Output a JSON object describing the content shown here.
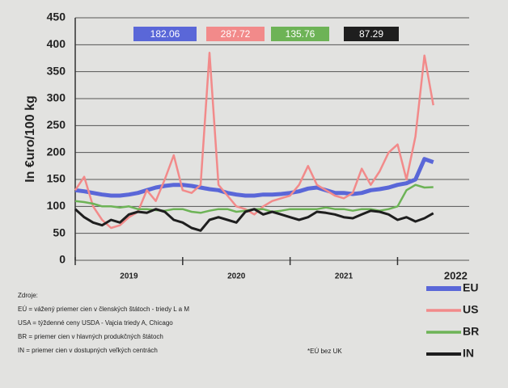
{
  "chart_data": {
    "type": "line",
    "ylabel": "In €uro/100 kg",
    "ylim": [
      0,
      450
    ],
    "yticks": [
      0,
      50,
      100,
      150,
      200,
      250,
      300,
      350,
      400,
      450
    ],
    "xlim": [
      0,
      44
    ],
    "xticks": [
      0,
      12,
      24,
      36
    ],
    "year_labels": [
      {
        "value": 6,
        "label": "2019"
      },
      {
        "value": 18,
        "label": "2020"
      },
      {
        "value": 30,
        "label": "2021"
      },
      {
        "value": 42.5,
        "label": "2022"
      }
    ],
    "grid": true,
    "x": [
      0,
      1,
      2,
      3,
      4,
      5,
      6,
      7,
      8,
      9,
      10,
      11,
      12,
      13,
      14,
      15,
      16,
      17,
      18,
      19,
      20,
      21,
      22,
      23,
      24,
      25,
      26,
      27,
      28,
      29,
      30,
      31,
      32,
      33,
      34,
      35,
      36,
      37,
      38,
      39,
      40
    ],
    "series": [
      {
        "name": "EU",
        "color": "#5a67d8",
        "width": 5,
        "values": [
          130,
          128,
          125,
          122,
          120,
          120,
          122,
          125,
          130,
          135,
          138,
          140,
          140,
          138,
          135,
          132,
          130,
          125,
          122,
          120,
          120,
          122,
          122,
          123,
          125,
          128,
          133,
          135,
          130,
          125,
          125,
          123,
          125,
          130,
          132,
          135,
          140,
          143,
          150,
          188,
          182.06
        ]
      },
      {
        "name": "US",
        "color": "#f28a8a",
        "width": 2.5,
        "values": [
          130,
          155,
          100,
          75,
          60,
          65,
          80,
          90,
          130,
          110,
          150,
          195,
          130,
          125,
          140,
          385,
          140,
          120,
          100,
          95,
          85,
          100,
          110,
          115,
          120,
          140,
          175,
          140,
          130,
          120,
          115,
          125,
          170,
          140,
          165,
          200,
          215,
          150,
          230,
          380,
          287.72
        ]
      },
      {
        "name": "BR",
        "color": "#6db356",
        "width": 2.5,
        "values": [
          110,
          108,
          105,
          100,
          100,
          98,
          100,
          95,
          95,
          93,
          92,
          95,
          95,
          90,
          88,
          92,
          95,
          95,
          90,
          92,
          95,
          95,
          90,
          92,
          95,
          95,
          95,
          95,
          98,
          95,
          95,
          92,
          95,
          95,
          92,
          95,
          100,
          130,
          140,
          135,
          135.76
        ]
      },
      {
        "name": "IN",
        "color": "#1e1e1e",
        "width": 3,
        "values": [
          95,
          80,
          70,
          65,
          75,
          70,
          85,
          90,
          88,
          95,
          90,
          75,
          70,
          60,
          55,
          75,
          80,
          75,
          70,
          90,
          95,
          85,
          90,
          85,
          80,
          75,
          80,
          90,
          88,
          85,
          80,
          78,
          85,
          92,
          90,
          85,
          75,
          80,
          72,
          78,
          87.29
        ]
      }
    ],
    "source_notes": [
      "Zdroje:",
      "EÚ = vážený priemer cien v členských štátoch - triedy L a M",
      "USA = týždenné ceny USDA - Vajcia triedy A, Chicago",
      "BR = priemer cien v hlavných produkčných štátoch",
      "IN = priemer cien v dostupných veľkých centrách"
    ],
    "footnote": "*EÚ bez UK"
  }
}
